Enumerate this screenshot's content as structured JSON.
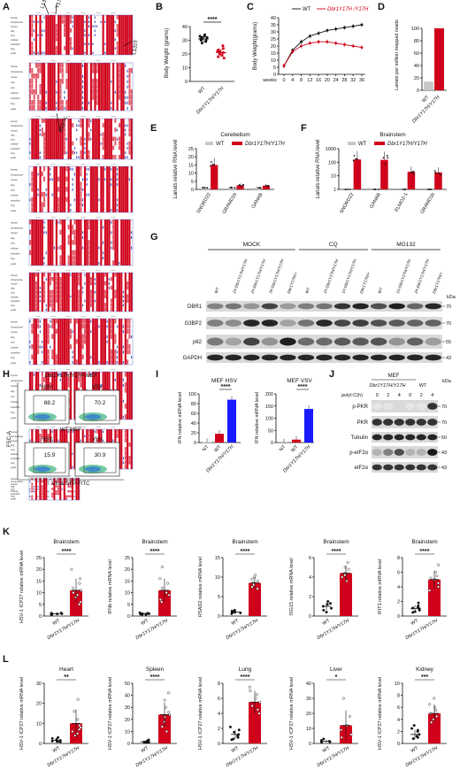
{
  "panels": {
    "A": {
      "letter": "A",
      "mutations": [
        "L13G",
        "Y17H",
        "L120T",
        "R197K"
      ],
      "species": [
        "human",
        "chimpanzee",
        "mouse",
        "dog",
        "cow",
        "chicken",
        "zebrafish",
        "frog",
        "yeast"
      ]
    },
    "B": {
      "letter": "B",
      "ylabel": "Body Weight  (grams)",
      "xticks": [
        "WT",
        "Dbr1Y17H/Y17H"
      ],
      "sig": "****",
      "chart_data": {
        "type": "scatter",
        "categories": [
          "WT",
          "Dbr1Y17H/Y17H"
        ],
        "ylim": [
          0,
          40
        ],
        "yticks": [
          "0",
          "10",
          "20",
          "30",
          "40"
        ],
        "groups": [
          {
            "mean": 31,
            "sd": 2.5,
            "points": [
              34,
              32,
              31,
              33,
              30,
              29,
              31,
              32,
              30,
              28,
              33
            ]
          },
          {
            "mean": 21,
            "sd": 3,
            "points": [
              26,
              24,
              22,
              20,
              18,
              17,
              21,
              23,
              19,
              22
            ]
          }
        ]
      }
    },
    "C": {
      "letter": "C",
      "ylabel": "Body Weight(grams)",
      "xunit": "weeks",
      "legend": [
        {
          "name": "WT",
          "color": "#111111"
        },
        {
          "name": "Dbr1Y17H /Y17H",
          "color": "#d0021b"
        }
      ],
      "chart_data": {
        "type": "line",
        "x": [
          0,
          4,
          8,
          12,
          16,
          20,
          24,
          28,
          32,
          36
        ],
        "xticks": [
          "0",
          "4",
          "8",
          "12",
          "16",
          "20",
          "24",
          "28",
          "32",
          "36"
        ],
        "ylim": [
          0,
          40
        ],
        "yticks": [
          "0",
          "5",
          "10",
          "15",
          "20",
          "25",
          "30",
          "35",
          "40"
        ],
        "series": [
          {
            "name": "WT",
            "values": [
              6,
              17,
              23,
              27,
              29,
              31,
              32,
              33,
              34,
              35
            ]
          },
          {
            "name": "Dbr1Y17H /Y17H",
            "values": [
              6,
              16,
              20,
              22,
              23,
              23,
              22,
              21,
              20,
              19
            ]
          }
        ]
      }
    },
    "D": {
      "letter": "D",
      "ylabel": "Lariats per million mapped reads",
      "xticks": [
        "WT",
        "Dbr1Y17H/Y17H"
      ],
      "chart_data": {
        "type": "bar",
        "categories": [
          "WT",
          "Dbr1Y17H/Y17H"
        ],
        "values": [
          14,
          100
        ],
        "ylim": [
          0,
          100
        ],
        "yticks": [
          "0",
          "20",
          "40",
          "60",
          "80",
          "100"
        ],
        "colors": [
          "#c8c8c8",
          "#d0021b"
        ]
      }
    },
    "E": {
      "letter": "E",
      "title": "Cerebellum",
      "ylabel": "Lariats relative RNA level",
      "legend": [
        {
          "name": "WT",
          "color": "#c8c8c8"
        },
        {
          "name": "Dbr1Y17H/Y17H",
          "color": "#d0021b"
        }
      ],
      "chart_data": {
        "type": "bar",
        "categories": [
          "SNORD22",
          "GRAMD1b",
          "GANAB"
        ],
        "ylim": [
          0,
          25
        ],
        "yticks": [
          "0",
          "5",
          "10",
          "15",
          "20",
          "25"
        ],
        "series": [
          {
            "name": "WT",
            "values": [
              1,
              1,
              1
            ]
          },
          {
            "name": "Dbr1Y17H/Y17H",
            "values": [
              15,
              2.5,
              2.3
            ]
          }
        ]
      }
    },
    "F": {
      "letter": "F",
      "title": "Brainstem",
      "ylabel": "Lariats relative RNA level",
      "legend": [
        {
          "name": "WT",
          "color": "#c8c8c8"
        },
        {
          "name": "Dbr1Y17H/Y17H",
          "color": "#d0021b"
        }
      ],
      "chart_data": {
        "type": "bar",
        "scale": "log",
        "categories": [
          "SNORD22",
          "GANAB",
          "ELMO2-1",
          "GRAMD1b"
        ],
        "ylim": [
          1,
          1000
        ],
        "yticks": [
          "1",
          "10",
          "100",
          "1000"
        ],
        "series": [
          {
            "name": "WT",
            "values": [
              1,
              1,
              1,
              1
            ]
          },
          {
            "name": "Dbr1Y17H/Y17H",
            "values": [
              160,
              150,
              20,
              18
            ]
          }
        ]
      }
    },
    "G": {
      "letter": "G",
      "groups": [
        "MOCK",
        "CQ",
        "MG132"
      ],
      "lanes": [
        "WT",
        "1#-Dbr1Y17H/Y17H",
        "2#-Dbr1Y17H/Y17H",
        "3#-Dbr1Y17H/Y17H",
        "Dbr1Y17H/+",
        "WT",
        "1#-Dbr1Y17H/Y17H",
        "1#-Dbr1Y17H/Y17H",
        "Dbr1Y17H/+",
        "WT",
        "1#-Dbr1Y17H/Y17H",
        "2#-Dbr1Y17H/Y17H",
        "Dbr1Y17H/+"
      ],
      "rows": [
        "DBR1",
        "G3BP2",
        "p62",
        "GAPDH"
      ],
      "kda": "kDa",
      "markers": [
        "70",
        "70",
        "55",
        "43"
      ]
    },
    "H": {
      "letter": "H",
      "top_label": "Dbr1Y17H/Y17H MEF",
      "bottom_label": "WT-MEF",
      "yaxis": "FSC-A",
      "xaxis": "Virus GFP-FITC",
      "gates": [
        {
          "virus": "HSV",
          "pct": "88.2"
        },
        {
          "virus": "VSV",
          "pct": "70.2"
        },
        {
          "virus": "HSV",
          "pct": "15.9"
        },
        {
          "virus": "VSV",
          "pct": "30.9"
        }
      ]
    },
    "I": {
      "letter": "I",
      "ylabel": "IFN relative mRNA level",
      "charts": [
        {
          "title": "MEF HSV",
          "sig": "****",
          "chart_data": {
            "type": "bar",
            "categories": [
              "NT",
              "WT",
              "Dbr1Y17H/Y17H"
            ],
            "values": [
              1,
              18,
              88
            ],
            "ylim": [
              0,
              100
            ],
            "yticks": [
              "0",
              "20",
              "40",
              "60",
              "80",
              "100"
            ]
          }
        },
        {
          "title": "MEF VSV",
          "sig": "****",
          "chart_data": {
            "type": "bar",
            "categories": [
              "NT",
              "WT",
              "Dbr1Y17H/Y17H"
            ],
            "values": [
              1,
              12,
              138
            ],
            "ylim": [
              0,
              200
            ],
            "yticks": [
              "0",
              "50",
              "100",
              "150",
              "200"
            ]
          }
        }
      ]
    },
    "J": {
      "letter": "J",
      "cell": "MEF",
      "mut": "Dbr1Y17H/Y17H",
      "wt": "WT",
      "treatment": "polyI:C(h)",
      "times": [
        "0",
        "2",
        "4",
        "0",
        "2",
        "4"
      ],
      "rows": [
        "p-PKR",
        "PKR",
        "Tubulin",
        "p-eIF2α",
        "eIF2α"
      ],
      "kda": "kDa",
      "markers": [
        "70",
        "70",
        "50",
        "43",
        "43"
      ]
    },
    "K": {
      "letter": "K",
      "charts": [
        {
          "title": "Brainstem",
          "ylabel": "HSV-1 ICP27 relative mRNA level",
          "sig": "****",
          "chart_data": {
            "type": "scatter",
            "categories": [
              "WT",
              "Dbr1Y17H/Y17H"
            ],
            "ylim": [
              0,
              25
            ],
            "yticks": [
              "0",
              "5",
              "10",
              "15",
              "20",
              "25"
            ],
            "groups": [
              {
                "mean": 1,
                "sd": 0.4,
                "points": [
                  1,
                  0.8,
                  1.2,
                  0.6,
                  1.1,
                  0.9,
                  1.3,
                  0.7,
                  1
                ]
              },
              {
                "mean": 11,
                "sd": 5,
                "points": [
                  20,
                  16,
                  14,
                  12,
                  11,
                  9,
                  8,
                  6,
                  5,
                  10
                ]
              }
            ]
          }
        },
        {
          "title": "Brainstem",
          "ylabel": "IFNb relative mRNA level",
          "sig": "****",
          "chart_data": {
            "type": "scatter",
            "categories": [
              "WT",
              "Dbr1Y17H/Y17H"
            ],
            "ylim": [
              0,
              25
            ],
            "yticks": [
              "0",
              "5",
              "10",
              "15",
              "20",
              "25"
            ],
            "groups": [
              {
                "mean": 1,
                "sd": 0.5,
                "points": [
                  1,
                  0.7,
                  1.4,
                  0.8,
                  1.2,
                  1,
                  0.6
                ]
              },
              {
                "mean": 11,
                "sd": 5,
                "points": [
                  21,
                  16,
                  14,
                  12,
                  10,
                  9,
                  7,
                  6
                ]
              }
            ]
          }
        },
        {
          "title": "Brainstem",
          "ylabel": "RSAD2 relative mRNA level",
          "sig": "****",
          "chart_data": {
            "type": "scatter",
            "categories": [
              "WT",
              "Dbr1Y17H/Y17H"
            ],
            "ylim": [
              0,
              15
            ],
            "yticks": [
              "0",
              "5",
              "10",
              "15"
            ],
            "groups": [
              {
                "mean": 1,
                "sd": 0.5,
                "points": [
                  1.5,
                  1.2,
                  0.8,
                  0.6,
                  1,
                  1.3,
                  0.9
                ]
              },
              {
                "mean": 8.5,
                "sd": 1.5,
                "points": [
                  10,
                  9.5,
                  9,
                  8.5,
                  8,
                  7.5,
                  7,
                  10.5
                ]
              }
            ]
          }
        },
        {
          "title": "Brainstem",
          "ylabel": "ISG15 relative mRNA level",
          "sig": "****",
          "chart_data": {
            "type": "scatter",
            "categories": [
              "WT",
              "Dbr1Y17H/Y17H"
            ],
            "ylim": [
              0,
              6
            ],
            "yticks": [
              "0",
              "2",
              "4",
              "6"
            ],
            "groups": [
              {
                "mean": 1,
                "sd": 0.4,
                "points": [
                  1.5,
                  1.2,
                  0.8,
                  0.6,
                  1,
                  0.4,
                  1.3
                ]
              },
              {
                "mean": 4.4,
                "sd": 0.8,
                "points": [
                  5.5,
                  5,
                  4.8,
                  4.4,
                  4,
                  3.6,
                  4.2
                ]
              }
            ]
          }
        },
        {
          "title": "Brainstem",
          "ylabel": "IFIT1 relative mRNA level",
          "sig": "****",
          "chart_data": {
            "type": "scatter",
            "categories": [
              "WT",
              "Dbr1Y17H/Y17H"
            ],
            "ylim": [
              0,
              8
            ],
            "yticks": [
              "0",
              "2",
              "4",
              "6",
              "8"
            ],
            "groups": [
              {
                "mean": 1,
                "sd": 0.5,
                "points": [
                  1.8,
                  1.2,
                  0.8,
                  0.5,
                  1,
                  1.4,
                  0.6,
                  1.1
                ]
              },
              {
                "mean": 5,
                "sd": 1.2,
                "points": [
                  7,
                  6,
                  5.5,
                  5,
                  4.5,
                  4,
                  3.5,
                  5.2
                ]
              }
            ]
          }
        }
      ]
    },
    "L": {
      "letter": "L",
      "charts": [
        {
          "title": "Heart",
          "ylabel": "HSV-1 ICP27 relative mRNA level",
          "sig": "**",
          "chart_data": {
            "type": "scatter",
            "categories": [
              "WT",
              "Dbr1Y17H/Y17H"
            ],
            "ylim": [
              0,
              30
            ],
            "yticks": [
              "0",
              "10",
              "20",
              "30"
            ],
            "groups": [
              {
                "mean": 1.5,
                "sd": 0.8,
                "points": [
                  3,
                  2,
                  1.5,
                  1,
                  0.8,
                  1.2,
                  2.5,
                  1
                ]
              },
              {
                "mean": 10,
                "sd": 7,
                "points": [
                  22,
                  16,
                  12,
                  9,
                  7,
                  6,
                  5,
                  4,
                  8
                ]
              }
            ]
          }
        },
        {
          "title": "Spleen",
          "ylabel": "HSV-1 ICP27 relative mRNA level",
          "sig": "****",
          "chart_data": {
            "type": "scatter",
            "categories": [
              "WT",
              "Dbr1Y17H/Y17H"
            ],
            "ylim": [
              0,
              50
            ],
            "yticks": [
              "0",
              "10",
              "20",
              "30",
              "40",
              "50"
            ],
            "groups": [
              {
                "mean": 1.5,
                "sd": 0.8,
                "points": [
                  3,
                  2,
                  1.5,
                  1,
                  0.8,
                  1.2,
                  2,
                  1
                ]
              },
              {
                "mean": 24,
                "sd": 10,
                "points": [
                  42,
                  36,
                  30,
                  26,
                  22,
                  18,
                  14,
                  10,
                  24
                ]
              }
            ]
          }
        },
        {
          "title": "Lung",
          "ylabel": "HSV-1 ICP27 relative mRNA level",
          "sig": "****",
          "chart_data": {
            "type": "scatter",
            "categories": [
              "WT",
              "Dbr1Y17H/Y17H"
            ],
            "ylim": [
              0,
              8
            ],
            "yticks": [
              "0",
              "2",
              "4",
              "6",
              "8"
            ],
            "groups": [
              {
                "mean": 1.2,
                "sd": 0.6,
                "points": [
                  2.2,
                  1.8,
                  1.2,
                  0.8,
                  0.6,
                  1,
                  1.5,
                  0.5
                ]
              },
              {
                "mean": 5.5,
                "sd": 1.5,
                "points": [
                  7,
                  6.5,
                  6,
                  5.5,
                  5,
                  4.5,
                  4,
                  7.5
                ]
              }
            ]
          }
        },
        {
          "title": "Liver",
          "ylabel": "HSV-1 ICP27 relative mRNA level",
          "sig": "*",
          "chart_data": {
            "type": "scatter",
            "categories": [
              "WT",
              "Dbr1Y17H/Y17H"
            ],
            "ylim": [
              0,
              40
            ],
            "yticks": [
              "0",
              "10",
              "20",
              "30",
              "40"
            ],
            "groups": [
              {
                "mean": 1.5,
                "sd": 1,
                "points": [
                  3,
                  2,
                  1.5,
                  1,
                  0.8,
                  1.2
                ]
              },
              {
                "mean": 12,
                "sd": 10,
                "points": [
                  30,
                  18,
                  12,
                  9,
                  6,
                  4
                ]
              }
            ]
          }
        },
        {
          "title": "Kidney",
          "ylabel": "HSV-1 ICP27 relative mRNA level",
          "sig": "***",
          "chart_data": {
            "type": "scatter",
            "categories": [
              "WT",
              "Dbr1Y17H/Y17H"
            ],
            "ylim": [
              0,
              10
            ],
            "yticks": [
              "0",
              "2",
              "4",
              "6",
              "8",
              "10"
            ],
            "groups": [
              {
                "mean": 1.5,
                "sd": 0.8,
                "points": [
                  3,
                  2.5,
                  2,
                  1.5,
                  1,
                  0.8,
                  1.2,
                  2.2
                ]
              },
              {
                "mean": 5,
                "sd": 1.5,
                "points": [
                  7.5,
                  6.5,
                  6,
                  5,
                  4.5,
                  4,
                  3.5,
                  5.5
                ]
              }
            ]
          }
        }
      ]
    }
  }
}
